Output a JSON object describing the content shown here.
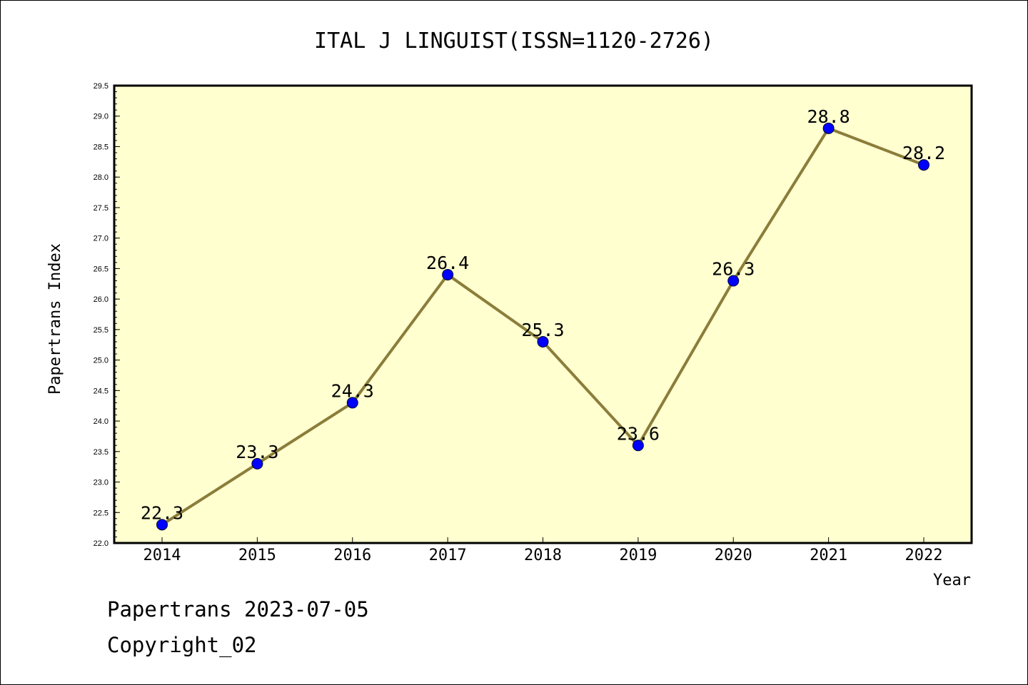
{
  "chart_data": {
    "type": "line",
    "title": "ITAL J LINGUIST(ISSN=1120-2726)",
    "xlabel": "Year",
    "ylabel": "Papertrans Index",
    "categories": [
      "2014",
      "2015",
      "2016",
      "2017",
      "2018",
      "2019",
      "2020",
      "2021",
      "2022"
    ],
    "values": [
      22.3,
      23.3,
      24.3,
      26.4,
      25.3,
      23.6,
      26.3,
      28.8,
      28.2
    ],
    "data_labels": [
      "22.3",
      "23.3",
      "24.3",
      "26.4",
      "25.3",
      "23.6",
      "26.3",
      "28.8",
      "28.2"
    ],
    "ylim": [
      22.0,
      29.5
    ],
    "yticks": [
      "22.0",
      "22.5",
      "23.0",
      "23.5",
      "24.0",
      "24.5",
      "25.0",
      "25.5",
      "26.0",
      "26.5",
      "27.0",
      "27.5",
      "28.0",
      "28.5",
      "29.0",
      "29.5"
    ],
    "grid": false,
    "legend": "none",
    "colors": {
      "plot_background": "#ffffd0",
      "line": "#8b7d3a",
      "marker": "#0000ff"
    }
  },
  "footer": {
    "line1": "Papertrans 2023-07-05",
    "line2": "Copyright_02"
  }
}
